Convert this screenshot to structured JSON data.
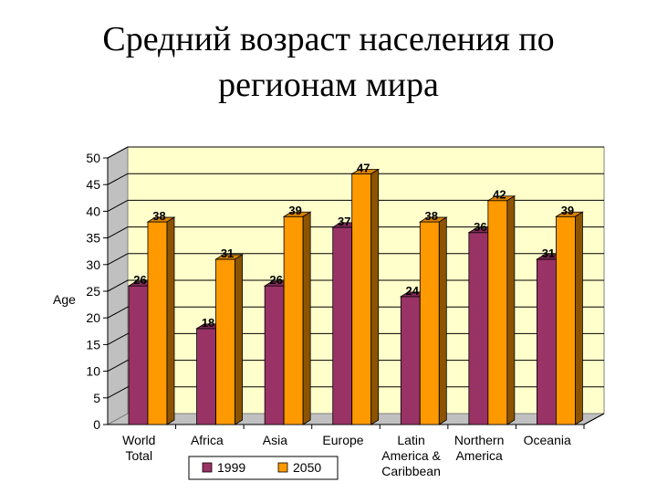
{
  "slide": {
    "title_line1": "Средний возраст населения по",
    "title_line2": "регионам мира"
  },
  "chart_data": {
    "type": "bar",
    "ylabel": "Age",
    "xlabel": "",
    "ylim": [
      0,
      50
    ],
    "yticks": [
      0,
      5,
      10,
      15,
      20,
      25,
      30,
      35,
      40,
      45,
      50
    ],
    "grid": true,
    "legend_position": "bottom",
    "categories": [
      [
        "World",
        "Total"
      ],
      [
        "Africa"
      ],
      [
        "Asia"
      ],
      [
        "Europe"
      ],
      [
        "Latin",
        "America &",
        "Caribbean"
      ],
      [
        "Northern",
        "America"
      ],
      [
        "Oceania"
      ]
    ],
    "series": [
      {
        "name": "1999",
        "color": "#993366",
        "values": [
          26,
          18,
          26,
          37,
          24,
          36,
          31
        ]
      },
      {
        "name": "2050",
        "color": "#FF9900",
        "values": [
          38,
          31,
          39,
          47,
          38,
          42,
          39
        ]
      }
    ],
    "plot_background": "#FFFFCC"
  }
}
